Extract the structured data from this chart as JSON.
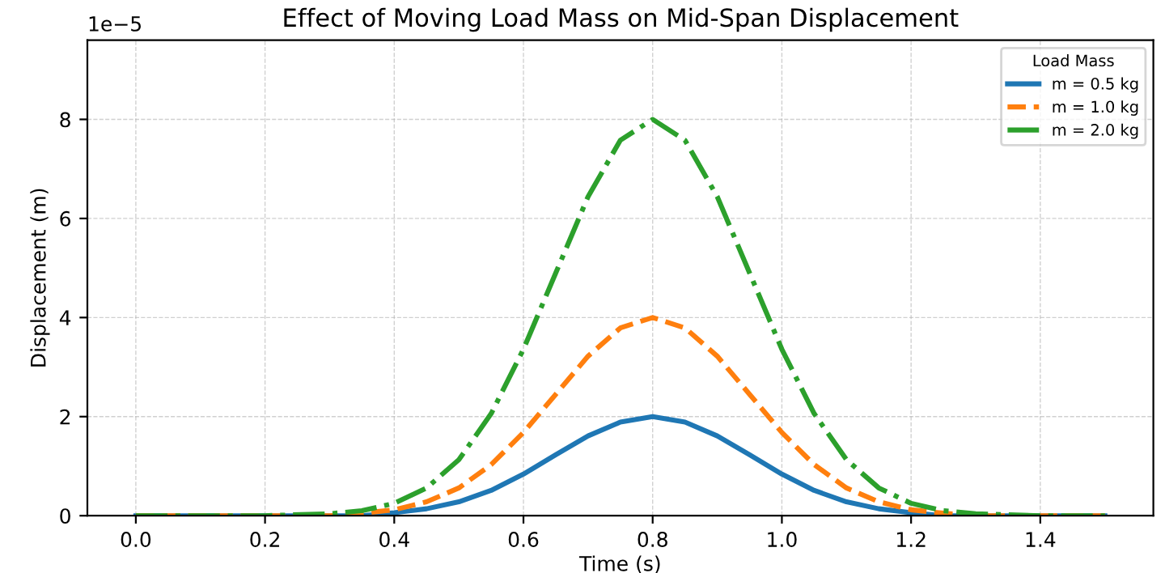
{
  "chart_data": {
    "type": "line",
    "title": "Effect of Moving Load Mass on Mid-Span Displacement",
    "xlabel": "Time (s)",
    "ylabel": "Displacement (m)",
    "legend_title": "Load Mass",
    "annotations": [
      "1e−5"
    ],
    "x": [
      0,
      0.1,
      0.2,
      0.3,
      0.35,
      0.4,
      0.45,
      0.5,
      0.55,
      0.6,
      0.65,
      0.7,
      0.75,
      0.8,
      0.85,
      0.9,
      0.95,
      1.0,
      1.05,
      1.1,
      1.15,
      1.2,
      1.25,
      1.3,
      1.4,
      1.5
    ],
    "series": [
      {
        "name": "m = 0.5 kg",
        "color": "#1f77b4",
        "line_style": "solid",
        "values": [
          0,
          0,
          0,
          0,
          0,
          0.06,
          0.14,
          0.28,
          0.51,
          0.84,
          1.23,
          1.61,
          1.89,
          2.0,
          1.89,
          1.61,
          1.23,
          0.84,
          0.51,
          0.28,
          0.14,
          0.06,
          0,
          0,
          0,
          0
        ]
      },
      {
        "name": "m = 1.0 kg",
        "color": "#ff7f0e",
        "line_style": "dashed",
        "values": [
          0,
          0,
          0,
          0,
          0.05,
          0.12,
          0.28,
          0.56,
          1.03,
          1.68,
          2.45,
          3.22,
          3.79,
          4.0,
          3.79,
          3.22,
          2.45,
          1.68,
          1.03,
          0.56,
          0.28,
          0.12,
          0.05,
          0,
          0,
          0
        ]
      },
      {
        "name": "m = 2.0 kg",
        "color": "#2ca02c",
        "line_style": "dashdot",
        "values": [
          0,
          0,
          0,
          0.04,
          0.1,
          0.25,
          0.56,
          1.13,
          2.06,
          3.36,
          4.9,
          6.44,
          7.58,
          8.0,
          7.58,
          6.44,
          4.9,
          3.36,
          2.06,
          1.13,
          0.56,
          0.25,
          0.1,
          0.04,
          0,
          0
        ]
      }
    ],
    "xlim": [
      -0.075,
      1.575
    ],
    "xticks": [
      {
        "value": 0,
        "label": "0.0"
      },
      0.2,
      0.4,
      0.6,
      0.8,
      {
        "value": 1,
        "label": "1.0"
      },
      1.2,
      1.4
    ],
    "ylim": [
      0,
      9.6
    ],
    "yticks": [
      0,
      2,
      4,
      6,
      8
    ],
    "grid": true,
    "legend": "top right"
  }
}
